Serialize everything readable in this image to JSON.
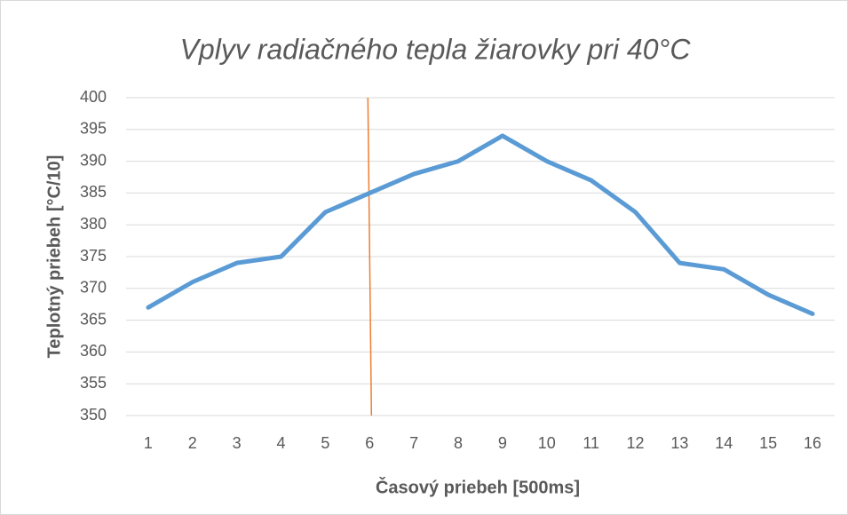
{
  "chart_data": {
    "type": "line",
    "title": "Vplyv radiačného tepla žiarovky pri 40°C",
    "x_label": "Časový priebeh [500ms]",
    "y_label": "Teplotný priebeh [°C/10]",
    "x": [
      1,
      2,
      3,
      4,
      5,
      6,
      7,
      8,
      9,
      10,
      11,
      12,
      13,
      14,
      15,
      16
    ],
    "series": [
      {
        "color": "#5b9bd5",
        "values": [
          367,
          371,
          374,
          375,
          382,
          385,
          388,
          390,
          394,
          390,
          387,
          382,
          374,
          373,
          369,
          366
        ]
      }
    ],
    "vline": {
      "x": 6,
      "color": "#ed7d31"
    },
    "xlim": [
      0.5,
      16.5
    ],
    "xticks": [
      1,
      2,
      3,
      4,
      5,
      6,
      7,
      8,
      9,
      10,
      11,
      12,
      13,
      14,
      15,
      16
    ],
    "ylim": [
      350,
      400
    ],
    "yticks": [
      350,
      355,
      360,
      365,
      370,
      375,
      380,
      385,
      390,
      395,
      400
    ],
    "grid": true
  }
}
